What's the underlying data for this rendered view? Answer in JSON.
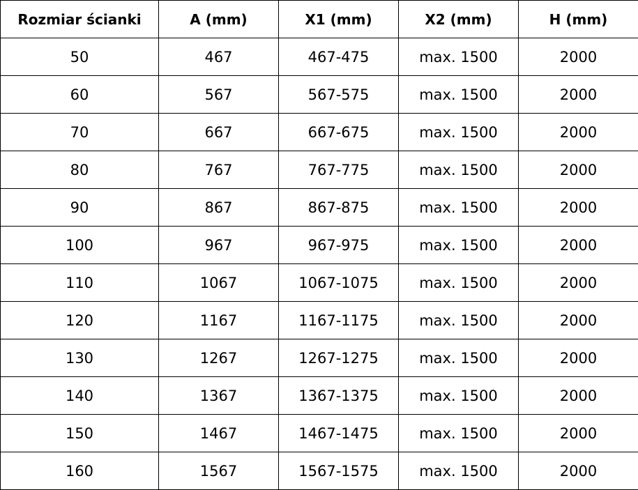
{
  "table": {
    "headers": [
      "Rozmiar ścianki",
      "A (mm)",
      "X1 (mm)",
      "X2 (mm)",
      "H (mm)"
    ],
    "rows": [
      [
        "50",
        "467",
        "467-475",
        "max. 1500",
        "2000"
      ],
      [
        "60",
        "567",
        "567-575",
        "max. 1500",
        "2000"
      ],
      [
        "70",
        "667",
        "667-675",
        "max. 1500",
        "2000"
      ],
      [
        "80",
        "767",
        "767-775",
        "max. 1500",
        "2000"
      ],
      [
        "90",
        "867",
        "867-875",
        "max. 1500",
        "2000"
      ],
      [
        "100",
        "967",
        "967-975",
        "max. 1500",
        "2000"
      ],
      [
        "110",
        "1067",
        "1067-1075",
        "max. 1500",
        "2000"
      ],
      [
        "120",
        "1167",
        "1167-1175",
        "max. 1500",
        "2000"
      ],
      [
        "130",
        "1267",
        "1267-1275",
        "max. 1500",
        "2000"
      ],
      [
        "140",
        "1367",
        "1367-1375",
        "max. 1500",
        "2000"
      ],
      [
        "150",
        "1467",
        "1467-1475",
        "max. 1500",
        "2000"
      ],
      [
        "160",
        "1567",
        "1567-1575",
        "max. 1500",
        "2000"
      ]
    ]
  }
}
